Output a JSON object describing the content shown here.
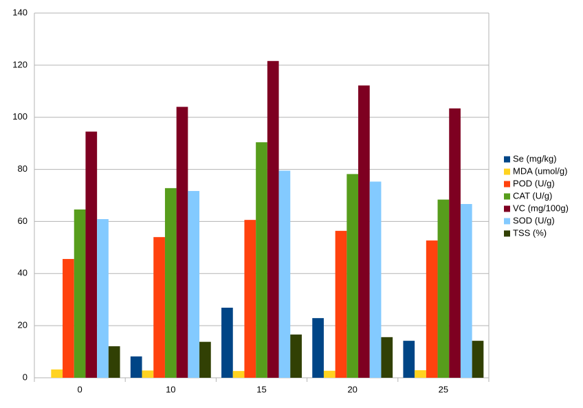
{
  "chart_data": {
    "type": "bar",
    "categories": [
      "0",
      "10",
      "15",
      "20",
      "25"
    ],
    "series": [
      {
        "name": "Se (mg/kg)",
        "color": "#004586",
        "values": [
          0,
          8.2,
          26.9,
          22.9,
          14.2
        ]
      },
      {
        "name": "MDA (umol/g)",
        "color": "#ffd320",
        "values": [
          3.2,
          2.8,
          2.6,
          2.7,
          2.9
        ]
      },
      {
        "name": "POD (U/g)",
        "color": "#ff420e",
        "values": [
          45.6,
          54,
          60.6,
          56.4,
          52.7
        ]
      },
      {
        "name": "CAT (U/g)",
        "color": "#579d1c",
        "values": [
          64.6,
          72.8,
          90.4,
          78.2,
          68.4
        ]
      },
      {
        "name": "VC (mg/100g)",
        "color": "#7e0021",
        "values": [
          94.5,
          104,
          121.6,
          112.2,
          103.4
        ]
      },
      {
        "name": "SOD (U/g)",
        "color": "#83caff",
        "values": [
          60.9,
          71.7,
          79.5,
          75.3,
          66.7
        ]
      },
      {
        "name": "TSS (%)",
        "color": "#314004",
        "values": [
          12.1,
          13.8,
          16.6,
          15.6,
          14.2
        ]
      }
    ],
    "ylim": [
      0,
      140
    ],
    "yticks": [
      0,
      20,
      40,
      60,
      80,
      100,
      120,
      140
    ],
    "grid": true,
    "legend": "right"
  }
}
